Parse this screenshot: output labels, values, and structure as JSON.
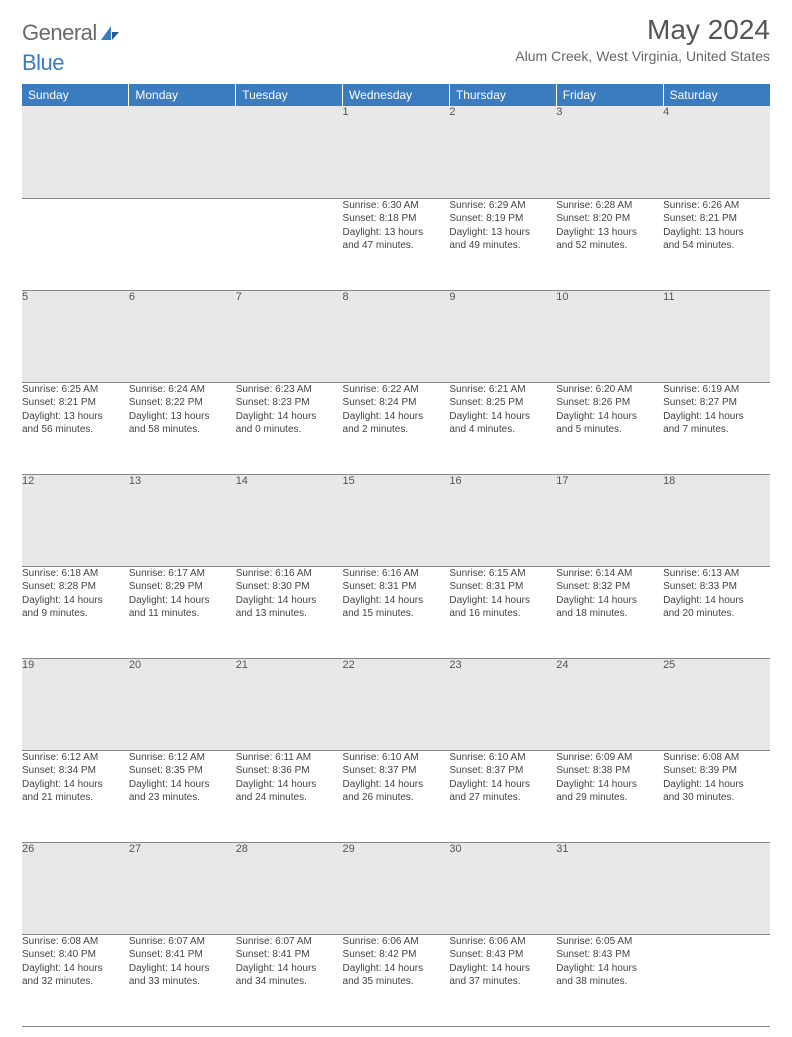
{
  "brand": {
    "part1": "General",
    "part2": "Blue"
  },
  "title": "May 2024",
  "location": "Alum Creek, West Virginia, United States",
  "colors": {
    "header_bg": "#3b7bbf",
    "header_fg": "#ffffff",
    "daynum_bg": "#e8e8e8",
    "rule": "#888888",
    "text": "#444444",
    "title": "#555555"
  },
  "weekdays": [
    "Sunday",
    "Monday",
    "Tuesday",
    "Wednesday",
    "Thursday",
    "Friday",
    "Saturday"
  ],
  "weeks": [
    [
      null,
      null,
      null,
      {
        "n": "1",
        "sr": "6:30 AM",
        "ss": "8:18 PM",
        "d1": "13 hours",
        "d2": "and 47 minutes."
      },
      {
        "n": "2",
        "sr": "6:29 AM",
        "ss": "8:19 PM",
        "d1": "13 hours",
        "d2": "and 49 minutes."
      },
      {
        "n": "3",
        "sr": "6:28 AM",
        "ss": "8:20 PM",
        "d1": "13 hours",
        "d2": "and 52 minutes."
      },
      {
        "n": "4",
        "sr": "6:26 AM",
        "ss": "8:21 PM",
        "d1": "13 hours",
        "d2": "and 54 minutes."
      }
    ],
    [
      {
        "n": "5",
        "sr": "6:25 AM",
        "ss": "8:21 PM",
        "d1": "13 hours",
        "d2": "and 56 minutes."
      },
      {
        "n": "6",
        "sr": "6:24 AM",
        "ss": "8:22 PM",
        "d1": "13 hours",
        "d2": "and 58 minutes."
      },
      {
        "n": "7",
        "sr": "6:23 AM",
        "ss": "8:23 PM",
        "d1": "14 hours",
        "d2": "and 0 minutes."
      },
      {
        "n": "8",
        "sr": "6:22 AM",
        "ss": "8:24 PM",
        "d1": "14 hours",
        "d2": "and 2 minutes."
      },
      {
        "n": "9",
        "sr": "6:21 AM",
        "ss": "8:25 PM",
        "d1": "14 hours",
        "d2": "and 4 minutes."
      },
      {
        "n": "10",
        "sr": "6:20 AM",
        "ss": "8:26 PM",
        "d1": "14 hours",
        "d2": "and 5 minutes."
      },
      {
        "n": "11",
        "sr": "6:19 AM",
        "ss": "8:27 PM",
        "d1": "14 hours",
        "d2": "and 7 minutes."
      }
    ],
    [
      {
        "n": "12",
        "sr": "6:18 AM",
        "ss": "8:28 PM",
        "d1": "14 hours",
        "d2": "and 9 minutes."
      },
      {
        "n": "13",
        "sr": "6:17 AM",
        "ss": "8:29 PM",
        "d1": "14 hours",
        "d2": "and 11 minutes."
      },
      {
        "n": "14",
        "sr": "6:16 AM",
        "ss": "8:30 PM",
        "d1": "14 hours",
        "d2": "and 13 minutes."
      },
      {
        "n": "15",
        "sr": "6:16 AM",
        "ss": "8:31 PM",
        "d1": "14 hours",
        "d2": "and 15 minutes."
      },
      {
        "n": "16",
        "sr": "6:15 AM",
        "ss": "8:31 PM",
        "d1": "14 hours",
        "d2": "and 16 minutes."
      },
      {
        "n": "17",
        "sr": "6:14 AM",
        "ss": "8:32 PM",
        "d1": "14 hours",
        "d2": "and 18 minutes."
      },
      {
        "n": "18",
        "sr": "6:13 AM",
        "ss": "8:33 PM",
        "d1": "14 hours",
        "d2": "and 20 minutes."
      }
    ],
    [
      {
        "n": "19",
        "sr": "6:12 AM",
        "ss": "8:34 PM",
        "d1": "14 hours",
        "d2": "and 21 minutes."
      },
      {
        "n": "20",
        "sr": "6:12 AM",
        "ss": "8:35 PM",
        "d1": "14 hours",
        "d2": "and 23 minutes."
      },
      {
        "n": "21",
        "sr": "6:11 AM",
        "ss": "8:36 PM",
        "d1": "14 hours",
        "d2": "and 24 minutes."
      },
      {
        "n": "22",
        "sr": "6:10 AM",
        "ss": "8:37 PM",
        "d1": "14 hours",
        "d2": "and 26 minutes."
      },
      {
        "n": "23",
        "sr": "6:10 AM",
        "ss": "8:37 PM",
        "d1": "14 hours",
        "d2": "and 27 minutes."
      },
      {
        "n": "24",
        "sr": "6:09 AM",
        "ss": "8:38 PM",
        "d1": "14 hours",
        "d2": "and 29 minutes."
      },
      {
        "n": "25",
        "sr": "6:08 AM",
        "ss": "8:39 PM",
        "d1": "14 hours",
        "d2": "and 30 minutes."
      }
    ],
    [
      {
        "n": "26",
        "sr": "6:08 AM",
        "ss": "8:40 PM",
        "d1": "14 hours",
        "d2": "and 32 minutes."
      },
      {
        "n": "27",
        "sr": "6:07 AM",
        "ss": "8:41 PM",
        "d1": "14 hours",
        "d2": "and 33 minutes."
      },
      {
        "n": "28",
        "sr": "6:07 AM",
        "ss": "8:41 PM",
        "d1": "14 hours",
        "d2": "and 34 minutes."
      },
      {
        "n": "29",
        "sr": "6:06 AM",
        "ss": "8:42 PM",
        "d1": "14 hours",
        "d2": "and 35 minutes."
      },
      {
        "n": "30",
        "sr": "6:06 AM",
        "ss": "8:43 PM",
        "d1": "14 hours",
        "d2": "and 37 minutes."
      },
      {
        "n": "31",
        "sr": "6:05 AM",
        "ss": "8:43 PM",
        "d1": "14 hours",
        "d2": "and 38 minutes."
      },
      null
    ]
  ],
  "labels": {
    "sunrise": "Sunrise:",
    "sunset": "Sunset:",
    "daylight": "Daylight:"
  }
}
